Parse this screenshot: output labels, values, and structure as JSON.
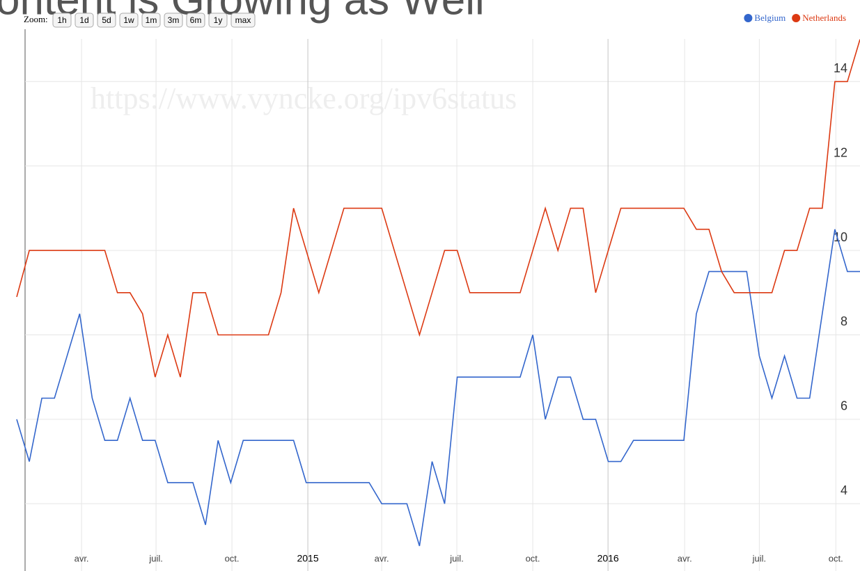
{
  "slide_title": "ontent is Growing as Well",
  "zoom": {
    "label": "Zoom:",
    "buttons": [
      "1h",
      "1d",
      "5d",
      "1w",
      "1m",
      "3m",
      "6m",
      "1y",
      "max"
    ]
  },
  "watermark": "https://www.vyncke.org/ipv6status",
  "chart_data": {
    "type": "line",
    "x": [
      0,
      1,
      2,
      3,
      4,
      5,
      6,
      7,
      8,
      9,
      10,
      11,
      12,
      13,
      14,
      15,
      16,
      17,
      18,
      19,
      20,
      21,
      22,
      23,
      24,
      25,
      26,
      27,
      28,
      29,
      30,
      31,
      32,
      33,
      34,
      35,
      36,
      37,
      38,
      39,
      40,
      41,
      42,
      43,
      44,
      45,
      46,
      47,
      48,
      49,
      50,
      51,
      52,
      53,
      54,
      55,
      56,
      57,
      58,
      59,
      60,
      61,
      62,
      63,
      64,
      65,
      66,
      67
    ],
    "xlim": [
      0,
      67
    ],
    "xticks": [
      {
        "value": 5.15,
        "label": "avr."
      },
      {
        "value": 11.07,
        "label": "juil."
      },
      {
        "value": 17.1,
        "label": "oct."
      },
      {
        "value": 23.13,
        "label": "2015"
      },
      {
        "value": 29.0,
        "label": "avr."
      },
      {
        "value": 34.97,
        "label": "juil."
      },
      {
        "value": 41.0,
        "label": "oct."
      },
      {
        "value": 46.98,
        "label": "2016"
      },
      {
        "value": 53.07,
        "label": "avr."
      },
      {
        "value": 59.0,
        "label": "juil."
      },
      {
        "value": 65.08,
        "label": "oct."
      }
    ],
    "ylim": [
      3,
      15.24
    ],
    "yticks": [
      4,
      6,
      8,
      10,
      12,
      14
    ],
    "grid": true,
    "legend": "top-right",
    "series": [
      {
        "name": "Belgium",
        "color": "#3366cc",
        "values": [
          6,
          5,
          6.5,
          6.5,
          7.5,
          8.5,
          6.5,
          5.5,
          5.5,
          6.5,
          5.5,
          5.5,
          4.5,
          4.5,
          4.5,
          3.5,
          5.5,
          4.5,
          5.5,
          5.5,
          5.5,
          5.5,
          5.5,
          4.5,
          4.5,
          4.5,
          4.5,
          4.5,
          4.5,
          4,
          4,
          4,
          3,
          5,
          4,
          7,
          7,
          7,
          7,
          7,
          7,
          8,
          6,
          7,
          7,
          6,
          6,
          5,
          5,
          5.5,
          5.5,
          5.5,
          5.5,
          5.5,
          8.5,
          9.5,
          9.5,
          9.5,
          9.5,
          7.5,
          6.5,
          7.5,
          6.5,
          6.5,
          8.5,
          10.5,
          9.5,
          9.5
        ]
      },
      {
        "name": "Netherlands",
        "color": "#dc3912",
        "values": [
          8.9,
          10,
          10,
          10,
          10,
          10,
          10,
          10,
          9,
          9,
          8.5,
          7,
          8,
          7,
          9,
          9,
          8,
          8,
          8,
          8,
          8,
          9,
          11,
          10,
          9,
          10,
          11,
          11,
          11,
          11,
          10,
          9,
          8,
          9,
          10,
          10,
          9,
          9,
          9,
          9,
          9,
          10,
          11,
          10,
          11,
          11,
          9,
          10,
          11,
          11,
          11,
          11,
          11,
          11,
          10.5,
          10.5,
          9.5,
          9,
          9,
          9,
          9,
          10,
          10,
          11,
          11,
          14,
          14,
          15
        ]
      }
    ]
  }
}
